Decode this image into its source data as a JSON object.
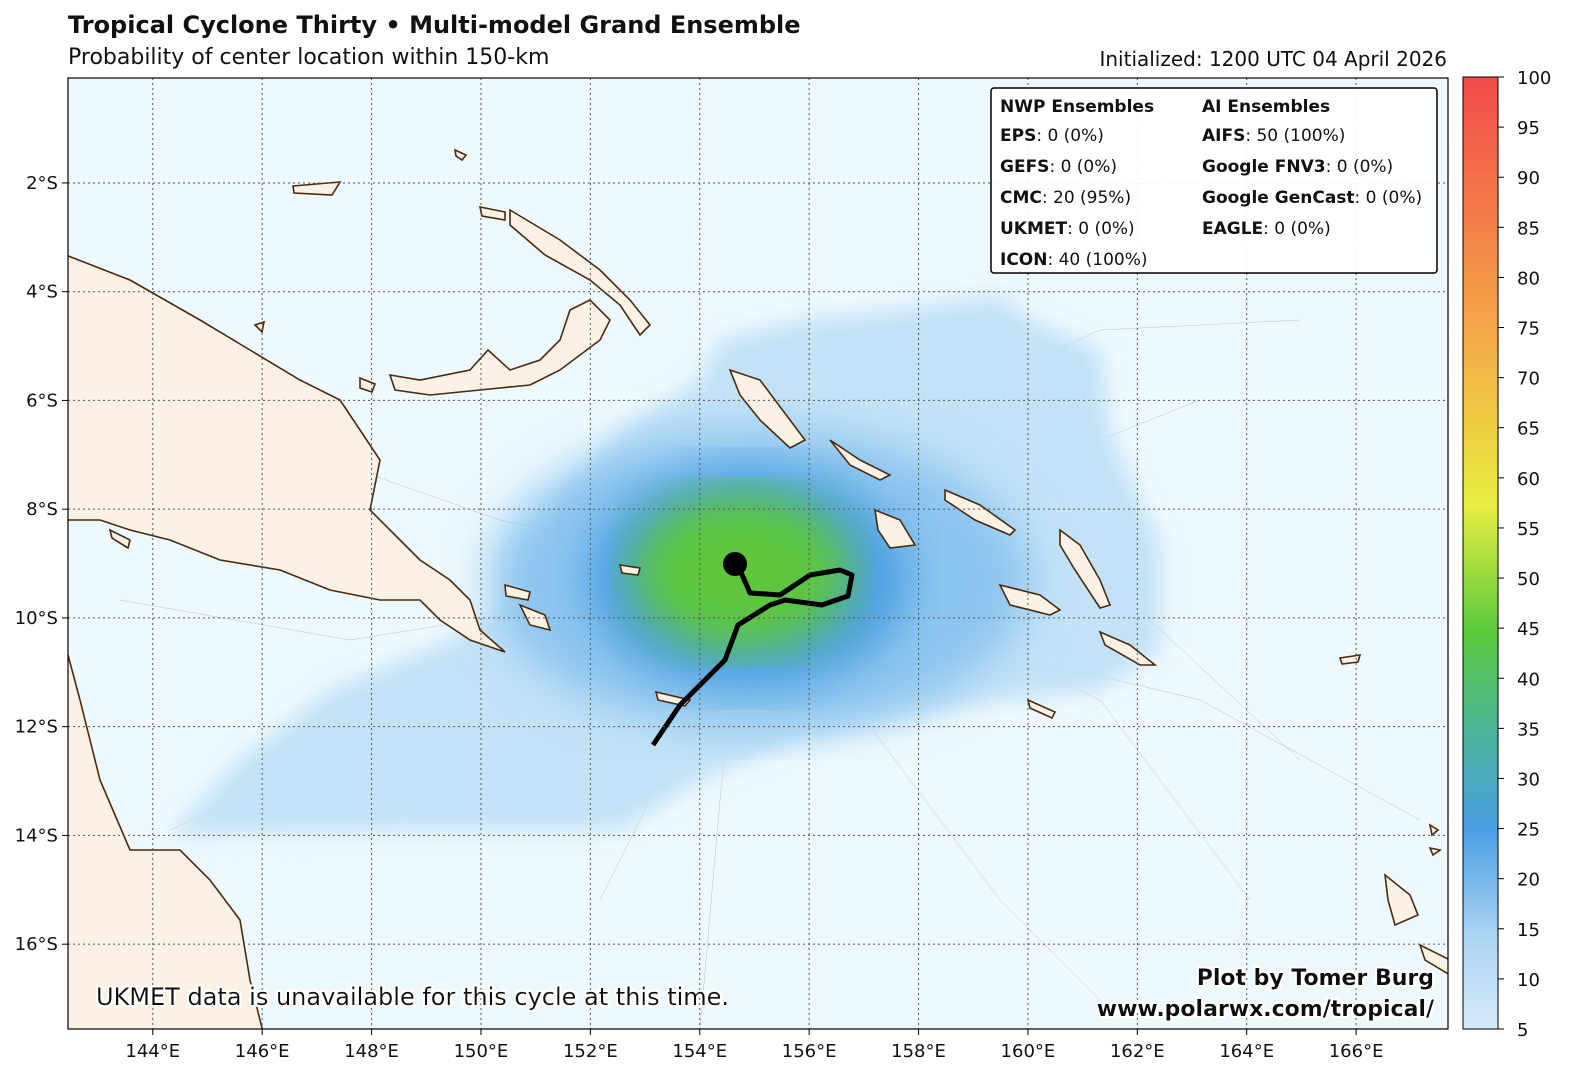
{
  "header": {
    "title": "Tropical Cyclone Thirty • Multi-model Grand Ensemble",
    "subtitle": "Probability of center location within 150-km",
    "initialized": "Initialized: 1200 UTC 04 April 2026"
  },
  "map": {
    "lon_lim": [
      142.45,
      167.68
    ],
    "lon_ticks": [
      {
        "value": 144,
        "label": "144°E"
      },
      {
        "value": 146,
        "label": "146°E"
      },
      {
        "value": 148,
        "label": "148°E"
      },
      {
        "value": 150,
        "label": "150°E"
      },
      {
        "value": 152,
        "label": "152°E"
      },
      {
        "value": 154,
        "label": "154°E"
      },
      {
        "value": 156,
        "label": "156°E"
      },
      {
        "value": 158,
        "label": "158°E"
      },
      {
        "value": 160,
        "label": "160°E"
      },
      {
        "value": 162,
        "label": "162°E"
      },
      {
        "value": 164,
        "label": "164°E"
      },
      {
        "value": 166,
        "label": "166°E"
      }
    ],
    "lat_lim": [
      -17.56,
      -0.07
    ],
    "lat_ticks": [
      {
        "value": -2,
        "label": "2°S"
      },
      {
        "value": -4,
        "label": "4°S"
      },
      {
        "value": -6,
        "label": "6°S"
      },
      {
        "value": -8,
        "label": "8°S"
      },
      {
        "value": -10,
        "label": "10°S"
      },
      {
        "value": -12,
        "label": "12°S"
      },
      {
        "value": -14,
        "label": "14°S"
      },
      {
        "value": -16,
        "label": "16°S"
      }
    ]
  },
  "colorbar": {
    "lim": [
      5,
      100
    ],
    "ticks": [
      5,
      10,
      15,
      20,
      25,
      30,
      35,
      40,
      45,
      50,
      55,
      60,
      65,
      70,
      75,
      80,
      85,
      90,
      95,
      100
    ]
  },
  "legend": {
    "nwp_title": "NWP Ensembles",
    "nwp": [
      {
        "name": "EPS",
        "text": ": 0 (0%)"
      },
      {
        "name": "GEFS",
        "text": ": 0 (0%)"
      },
      {
        "name": "CMC",
        "text": ": 20 (95%)"
      },
      {
        "name": "UKMET",
        "text": ": 0 (0%)"
      },
      {
        "name": "ICON",
        "text": ": 40 (100%)"
      }
    ],
    "ai_title": "AI Ensembles",
    "ai": [
      {
        "name": "AIFS",
        "text": ": 50 (100%)"
      },
      {
        "name": "Google FNV3",
        "text": ": 0 (0%)"
      },
      {
        "name": "Google GenCast",
        "text": ": 0 (0%)"
      },
      {
        "name": "EAGLE",
        "text": ": 0 (0%)"
      }
    ]
  },
  "notes": {
    "ukmet": "UKMET data is unavailable for this cycle at this time.",
    "credit": "Plot by Tomer Burg",
    "url": "www.polarwx.com/tropical/"
  }
}
